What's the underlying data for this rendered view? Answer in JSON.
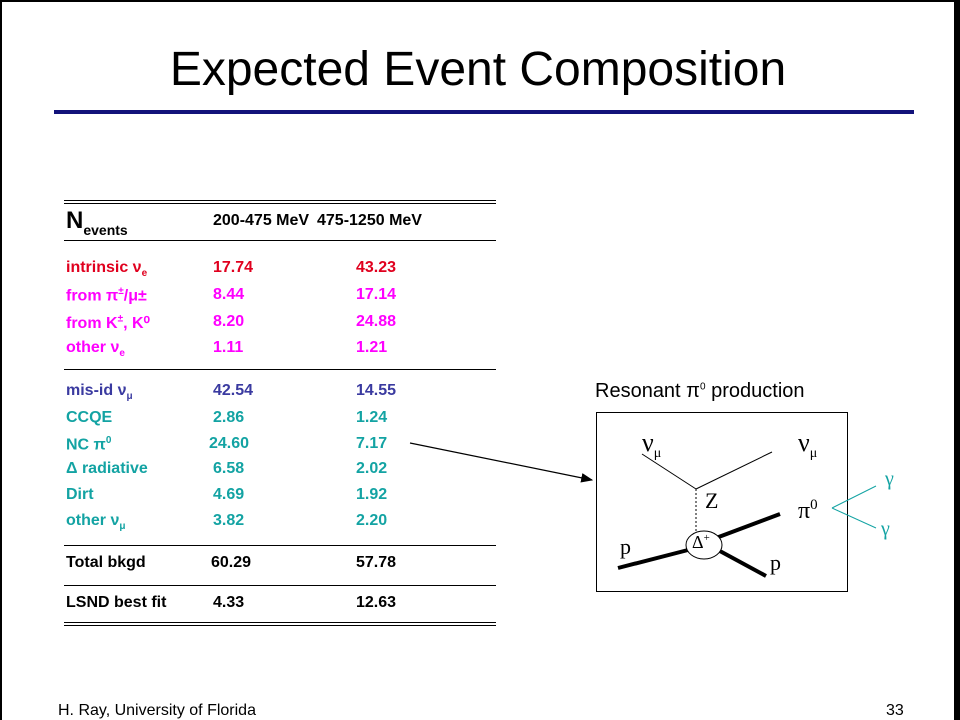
{
  "title": "Expected Event Composition",
  "table": {
    "header": {
      "n": "N",
      "n_sub": "events",
      "col1": "200-475 MeV",
      "col2": "475-1250 MeV"
    },
    "rows": [
      {
        "label": "intrinsic ν",
        "sub": "e",
        "sup": "",
        "label_tail": "",
        "v1": "17.74",
        "v2": "43.23",
        "color": "#e0001e"
      },
      {
        "label": "from π",
        "sup": "±",
        "label_tail": "/μ±",
        "sub": "",
        "v1": "8.44",
        "v2": "17.14",
        "color": "#ff00ff"
      },
      {
        "label": "from K",
        "sup": "±",
        "label_tail": ", K⁰",
        "sub": "",
        "v1": "8.20",
        "v2": "24.88",
        "color": "#ff00ff"
      },
      {
        "label": "other ν",
        "sub": "e",
        "sup": "",
        "label_tail": "",
        "v1": "1.11",
        "v2": "1.21",
        "color": "#ff00ff"
      },
      {
        "label": "mis-id ν",
        "sub": "μ",
        "sup": "",
        "label_tail": "",
        "v1": "42.54",
        "v2": "14.55",
        "color": "#3a3aa0"
      },
      {
        "label": "CCQE",
        "sub": "",
        "sup": "",
        "label_tail": "",
        "v1": "2.86",
        "v2": "1.24",
        "color": "#13a3a3"
      },
      {
        "label": "NC π",
        "sup": "0",
        "sub": "",
        "label_tail": "",
        "v1": "24.60",
        "v2": "7.17",
        "color": "#13a3a3"
      },
      {
        "label": "Δ radiative",
        "sub": "",
        "sup": "",
        "label_tail": "",
        "v1": "6.58",
        "v2": "2.02",
        "color": "#13a3a3"
      },
      {
        "label": "Dirt",
        "sub": "",
        "sup": "",
        "label_tail": "",
        "v1": "4.69",
        "v2": "1.92",
        "color": "#13a3a3"
      },
      {
        "label": "other ν",
        "sub": "μ",
        "sup": "",
        "label_tail": "",
        "v1": "3.82",
        "v2": "2.20",
        "color": "#13a3a3"
      },
      {
        "label": "Total bkgd",
        "sub": "",
        "sup": "",
        "label_tail": "",
        "v1": "60.29",
        "v2": "57.78",
        "color": "#000000"
      },
      {
        "label": "LSND best fit",
        "sub": "",
        "sup": "",
        "label_tail": "",
        "v1": "4.33",
        "v2": "12.63",
        "color": "#000000"
      }
    ]
  },
  "diagram": {
    "title": "Resonant π",
    "title_sup": "0",
    "title_tail": " production",
    "nu_left": "ν",
    "nu_left_sub": "μ",
    "nu_right": "ν",
    "nu_right_sub": "μ",
    "boson": "Z",
    "pion": "π",
    "pion_sup": "0",
    "delta": "Δ",
    "delta_sup": "+",
    "proton_in": "p",
    "proton_out": "p",
    "gamma1": "γ",
    "gamma2": "γ"
  },
  "footer": {
    "left": "H. Ray, University of Florida",
    "right": "33"
  },
  "colors": {
    "title_rule": "#12127a",
    "intrinsic": "#e0001e",
    "from_decay": "#ff00ff",
    "misid": "#3a3aa0",
    "nc": "#13a3a3",
    "gamma_lines": "#13a3a3"
  }
}
